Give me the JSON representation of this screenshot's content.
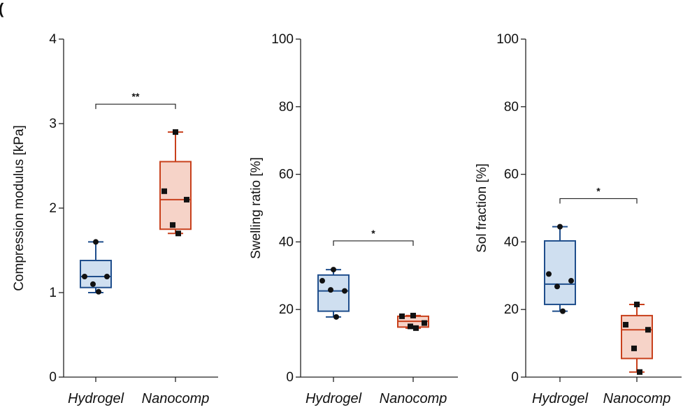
{
  "figure": {
    "panel_letter": "("
  },
  "chart_data": [
    {
      "type": "box",
      "title": "",
      "xlabel": "",
      "ylabel": "Compression modulus [kPa]",
      "ylim": [
        0,
        4
      ],
      "yticks": [
        0,
        1,
        2,
        3,
        4
      ],
      "categories": [
        "Hydrogel",
        "Nanocomp"
      ],
      "series": [
        {
          "category": "Hydrogel",
          "color": "#1f4e8c",
          "fill": "#cfdff0",
          "marker": "circle",
          "box": {
            "min": 1.0,
            "q1": 1.06,
            "median": 1.19,
            "q3": 1.38,
            "max": 1.6
          },
          "points": [
            1.6,
            1.19,
            1.19,
            1.1,
            1.01
          ]
        },
        {
          "category": "Nanocomp",
          "color": "#c8401c",
          "fill": "#f6d3c8",
          "marker": "square",
          "box": {
            "min": 1.7,
            "q1": 1.75,
            "median": 2.1,
            "q3": 2.55,
            "max": 2.9
          },
          "points": [
            2.9,
            2.2,
            2.1,
            1.8,
            1.7
          ]
        }
      ],
      "significance": {
        "from": 0,
        "to": 1,
        "label": "**",
        "y": 3.23
      }
    },
    {
      "type": "box",
      "title": "",
      "xlabel": "",
      "ylabel": "Swelling ratio [%]",
      "ylim": [
        0,
        100
      ],
      "yticks": [
        0,
        20,
        40,
        60,
        80,
        100
      ],
      "categories": [
        "Hydrogel",
        "Nanocomp"
      ],
      "series": [
        {
          "category": "Hydrogel",
          "color": "#1f4e8c",
          "fill": "#cfdff0",
          "marker": "circle",
          "box": {
            "min": 17.8,
            "q1": 19.5,
            "median": 25.5,
            "q3": 30.2,
            "max": 31.8
          },
          "points": [
            31.8,
            28.5,
            25.5,
            25.8,
            17.8
          ]
        },
        {
          "category": "Nanocomp",
          "color": "#c8401c",
          "fill": "#f6d3c8",
          "marker": "square",
          "box": {
            "min": 14.5,
            "q1": 14.8,
            "median": 16.5,
            "q3": 18.0,
            "max": 18.2
          },
          "points": [
            18.2,
            18.0,
            16.0,
            15.0,
            14.5
          ]
        }
      ],
      "significance": {
        "from": 0,
        "to": 1,
        "label": "*",
        "y": 40.3
      }
    },
    {
      "type": "box",
      "title": "",
      "xlabel": "",
      "ylabel": "Sol fraction  [%]",
      "ylim": [
        0,
        100
      ],
      "yticks": [
        0,
        20,
        40,
        60,
        80,
        100
      ],
      "categories": [
        "Hydrogel",
        "Nanocomp"
      ],
      "series": [
        {
          "category": "Hydrogel",
          "color": "#1f4e8c",
          "fill": "#cfdff0",
          "marker": "circle",
          "box": {
            "min": 19.5,
            "q1": 21.5,
            "median": 27.5,
            "q3": 40.3,
            "max": 44.5
          },
          "points": [
            44.5,
            30.5,
            28.5,
            26.8,
            19.5
          ]
        },
        {
          "category": "Nanocomp",
          "color": "#c8401c",
          "fill": "#f6d3c8",
          "marker": "square",
          "box": {
            "min": 1.5,
            "q1": 5.5,
            "median": 14.0,
            "q3": 18.2,
            "max": 21.5
          },
          "points": [
            21.5,
            15.5,
            14.0,
            8.5,
            1.5
          ]
        }
      ],
      "significance": {
        "from": 0,
        "to": 1,
        "label": "*",
        "y": 52.8
      }
    }
  ]
}
